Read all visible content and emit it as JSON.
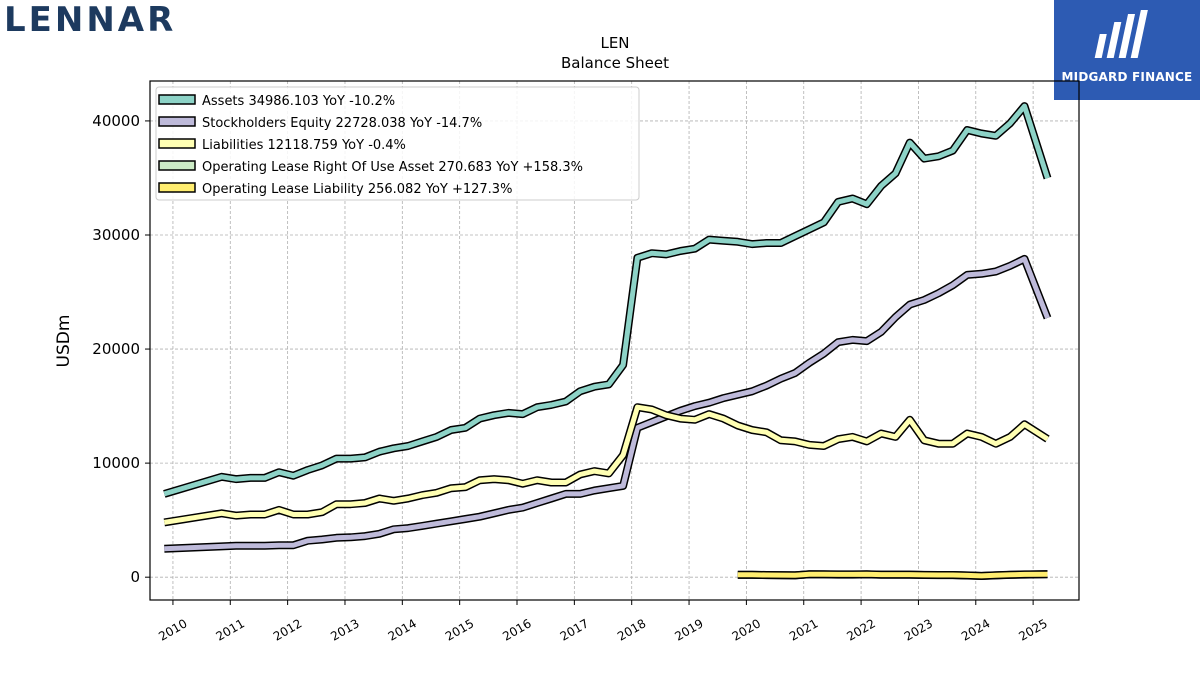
{
  "brand": {
    "left_logo_text": "LENNAR",
    "right_logo_text": "MIDGARD FINANCE"
  },
  "chart_data": {
    "type": "line",
    "title": "LEN",
    "subtitle": "Balance  Sheet",
    "ylabel": "USDm",
    "xlabel": "",
    "xlim": [
      2009.6,
      2025.8
    ],
    "ylim": [
      -2000,
      43500
    ],
    "yticks": [
      0,
      10000,
      20000,
      30000,
      40000
    ],
    "xticks": [
      "2010",
      "2011",
      "2012",
      "2013",
      "2014",
      "2015",
      "2016",
      "2017",
      "2018",
      "2019",
      "2020",
      "2021",
      "2022",
      "2023",
      "2024",
      "2025"
    ],
    "grid": true,
    "legend_position": "top-left",
    "series": [
      {
        "name": "Assets  34986.103 YoY -10.2%",
        "color": "#8dd3c7",
        "points": [
          [
            2009.85,
            7300
          ],
          [
            2010.85,
            8800
          ],
          [
            2011.1,
            8600
          ],
          [
            2011.35,
            8700
          ],
          [
            2011.6,
            8700
          ],
          [
            2011.85,
            9200
          ],
          [
            2012.1,
            8900
          ],
          [
            2012.35,
            9400
          ],
          [
            2012.6,
            9800
          ],
          [
            2012.85,
            10400
          ],
          [
            2013.1,
            10400
          ],
          [
            2013.35,
            10500
          ],
          [
            2013.6,
            11000
          ],
          [
            2013.85,
            11300
          ],
          [
            2014.1,
            11500
          ],
          [
            2014.35,
            11900
          ],
          [
            2014.6,
            12300
          ],
          [
            2014.85,
            12900
          ],
          [
            2015.1,
            13100
          ],
          [
            2015.35,
            13900
          ],
          [
            2015.6,
            14200
          ],
          [
            2015.85,
            14400
          ],
          [
            2016.1,
            14300
          ],
          [
            2016.35,
            14900
          ],
          [
            2016.6,
            15100
          ],
          [
            2016.85,
            15400
          ],
          [
            2017.1,
            16300
          ],
          [
            2017.35,
            16700
          ],
          [
            2017.6,
            16900
          ],
          [
            2017.85,
            18600
          ],
          [
            2018.1,
            28000
          ],
          [
            2018.35,
            28400
          ],
          [
            2018.6,
            28300
          ],
          [
            2018.85,
            28600
          ],
          [
            2019.1,
            28800
          ],
          [
            2019.35,
            29600
          ],
          [
            2019.6,
            29500
          ],
          [
            2019.85,
            29400
          ],
          [
            2020.1,
            29200
          ],
          [
            2020.35,
            29300
          ],
          [
            2020.6,
            29300
          ],
          [
            2020.85,
            29900
          ],
          [
            2021.1,
            30500
          ],
          [
            2021.35,
            31100
          ],
          [
            2021.6,
            32900
          ],
          [
            2021.85,
            33200
          ],
          [
            2022.1,
            32700
          ],
          [
            2022.35,
            34300
          ],
          [
            2022.6,
            35400
          ],
          [
            2022.85,
            38100
          ],
          [
            2023.1,
            36700
          ],
          [
            2023.35,
            36900
          ],
          [
            2023.6,
            37400
          ],
          [
            2023.85,
            39200
          ],
          [
            2024.1,
            38900
          ],
          [
            2024.35,
            38700
          ],
          [
            2024.6,
            39800
          ],
          [
            2024.85,
            41300
          ],
          [
            2025.25,
            34986
          ]
        ]
      },
      {
        "name": "Stockholders Equity  22728.038 YoY -14.7%",
        "color": "#bebada",
        "points": [
          [
            2009.85,
            2500
          ],
          [
            2010.85,
            2700
          ],
          [
            2011.1,
            2750
          ],
          [
            2011.35,
            2750
          ],
          [
            2011.6,
            2750
          ],
          [
            2011.85,
            2800
          ],
          [
            2012.1,
            2800
          ],
          [
            2012.35,
            3200
          ],
          [
            2012.6,
            3300
          ],
          [
            2012.85,
            3450
          ],
          [
            2013.1,
            3500
          ],
          [
            2013.35,
            3600
          ],
          [
            2013.6,
            3800
          ],
          [
            2013.85,
            4200
          ],
          [
            2014.1,
            4300
          ],
          [
            2014.35,
            4500
          ],
          [
            2014.6,
            4700
          ],
          [
            2014.85,
            4900
          ],
          [
            2015.1,
            5100
          ],
          [
            2015.35,
            5300
          ],
          [
            2015.6,
            5600
          ],
          [
            2015.85,
            5900
          ],
          [
            2016.1,
            6100
          ],
          [
            2016.35,
            6500
          ],
          [
            2016.6,
            6900
          ],
          [
            2016.85,
            7300
          ],
          [
            2017.1,
            7300
          ],
          [
            2017.35,
            7600
          ],
          [
            2017.6,
            7800
          ],
          [
            2017.85,
            8000
          ],
          [
            2018.1,
            13100
          ],
          [
            2018.35,
            13600
          ],
          [
            2018.6,
            14100
          ],
          [
            2018.85,
            14600
          ],
          [
            2019.1,
            15000
          ],
          [
            2019.35,
            15300
          ],
          [
            2019.6,
            15700
          ],
          [
            2019.85,
            16000
          ],
          [
            2020.1,
            16300
          ],
          [
            2020.35,
            16800
          ],
          [
            2020.6,
            17400
          ],
          [
            2020.85,
            17900
          ],
          [
            2021.1,
            18800
          ],
          [
            2021.35,
            19600
          ],
          [
            2021.6,
            20600
          ],
          [
            2021.85,
            20800
          ],
          [
            2022.1,
            20700
          ],
          [
            2022.35,
            21500
          ],
          [
            2022.6,
            22800
          ],
          [
            2022.85,
            23900
          ],
          [
            2023.1,
            24300
          ],
          [
            2023.35,
            24900
          ],
          [
            2023.6,
            25600
          ],
          [
            2023.85,
            26500
          ],
          [
            2024.1,
            26600
          ],
          [
            2024.35,
            26800
          ],
          [
            2024.6,
            27300
          ],
          [
            2024.85,
            27900
          ],
          [
            2025.25,
            22728
          ]
        ]
      },
      {
        "name": "Liabilities  12118.759 YoY -0.4%",
        "color": "#ffffb3",
        "points": [
          [
            2009.85,
            4800
          ],
          [
            2010.85,
            5600
          ],
          [
            2011.1,
            5400
          ],
          [
            2011.35,
            5500
          ],
          [
            2011.6,
            5500
          ],
          [
            2011.85,
            5900
          ],
          [
            2012.1,
            5500
          ],
          [
            2012.35,
            5500
          ],
          [
            2012.6,
            5700
          ],
          [
            2012.85,
            6400
          ],
          [
            2013.1,
            6400
          ],
          [
            2013.35,
            6500
          ],
          [
            2013.6,
            6900
          ],
          [
            2013.85,
            6700
          ],
          [
            2014.1,
            6900
          ],
          [
            2014.35,
            7200
          ],
          [
            2014.6,
            7400
          ],
          [
            2014.85,
            7800
          ],
          [
            2015.1,
            7900
          ],
          [
            2015.35,
            8500
          ],
          [
            2015.6,
            8600
          ],
          [
            2015.85,
            8500
          ],
          [
            2016.1,
            8200
          ],
          [
            2016.35,
            8500
          ],
          [
            2016.6,
            8300
          ],
          [
            2016.85,
            8300
          ],
          [
            2017.1,
            9000
          ],
          [
            2017.35,
            9300
          ],
          [
            2017.6,
            9100
          ],
          [
            2017.85,
            10700
          ],
          [
            2018.1,
            14900
          ],
          [
            2018.35,
            14700
          ],
          [
            2018.6,
            14200
          ],
          [
            2018.85,
            13900
          ],
          [
            2019.1,
            13800
          ],
          [
            2019.35,
            14300
          ],
          [
            2019.6,
            13900
          ],
          [
            2019.85,
            13300
          ],
          [
            2020.1,
            12900
          ],
          [
            2020.35,
            12700
          ],
          [
            2020.6,
            12000
          ],
          [
            2020.85,
            11900
          ],
          [
            2021.1,
            11600
          ],
          [
            2021.35,
            11500
          ],
          [
            2021.6,
            12100
          ],
          [
            2021.85,
            12300
          ],
          [
            2022.1,
            11900
          ],
          [
            2022.35,
            12600
          ],
          [
            2022.6,
            12300
          ],
          [
            2022.85,
            13800
          ],
          [
            2023.1,
            12000
          ],
          [
            2023.35,
            11700
          ],
          [
            2023.6,
            11700
          ],
          [
            2023.85,
            12600
          ],
          [
            2024.1,
            12300
          ],
          [
            2024.35,
            11700
          ],
          [
            2024.6,
            12300
          ],
          [
            2024.85,
            13400
          ],
          [
            2025.25,
            12119
          ]
        ]
      },
      {
        "name": "Operating Lease Right Of Use Asset  270.683 YoY +158.3%",
        "color": "#ccebc5",
        "points": [
          [
            2019.85,
            200
          ],
          [
            2020.1,
            200
          ],
          [
            2020.35,
            180
          ],
          [
            2020.6,
            170
          ],
          [
            2020.85,
            160
          ],
          [
            2021.1,
            250
          ],
          [
            2021.35,
            240
          ],
          [
            2021.6,
            230
          ],
          [
            2021.85,
            230
          ],
          [
            2022.1,
            240
          ],
          [
            2022.35,
            220
          ],
          [
            2022.6,
            220
          ],
          [
            2022.85,
            220
          ],
          [
            2023.1,
            190
          ],
          [
            2023.35,
            180
          ],
          [
            2023.6,
            180
          ],
          [
            2023.85,
            150
          ],
          [
            2024.1,
            100
          ],
          [
            2024.35,
            160
          ],
          [
            2024.6,
            200
          ],
          [
            2024.85,
            230
          ],
          [
            2025.25,
            271
          ]
        ]
      },
      {
        "name": "Operating Lease Liability  256.082 YoY +127.3%",
        "color": "#ffed6f",
        "points": [
          [
            2019.85,
            210
          ],
          [
            2020.1,
            210
          ],
          [
            2020.35,
            190
          ],
          [
            2020.6,
            180
          ],
          [
            2020.85,
            170
          ],
          [
            2021.1,
            260
          ],
          [
            2021.35,
            250
          ],
          [
            2021.6,
            240
          ],
          [
            2021.85,
            240
          ],
          [
            2022.1,
            250
          ],
          [
            2022.35,
            230
          ],
          [
            2022.6,
            230
          ],
          [
            2022.85,
            230
          ],
          [
            2023.1,
            200
          ],
          [
            2023.35,
            190
          ],
          [
            2023.6,
            190
          ],
          [
            2023.85,
            160
          ],
          [
            2024.1,
            110
          ],
          [
            2024.35,
            170
          ],
          [
            2024.6,
            210
          ],
          [
            2024.85,
            240
          ],
          [
            2025.25,
            256
          ]
        ]
      }
    ]
  }
}
